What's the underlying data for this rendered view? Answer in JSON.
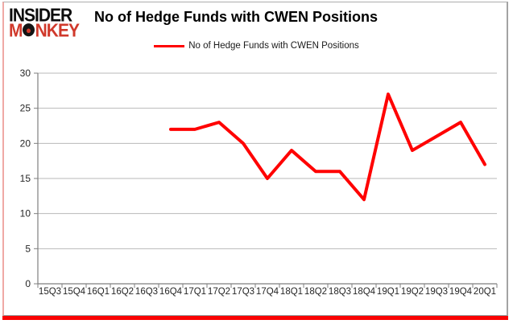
{
  "brand": {
    "top": "INSIDER",
    "bottom": "MONKEY"
  },
  "chart_data": {
    "type": "line",
    "title": "No of Hedge Funds with CWEN Positions",
    "legend": "No of Hedge Funds with CWEN Positions",
    "categories": [
      "15Q3",
      "15Q4",
      "16Q1",
      "16Q2",
      "16Q3",
      "16Q4",
      "17Q1",
      "17Q2",
      "17Q3",
      "17Q4",
      "18Q1",
      "18Q2",
      "18Q3",
      "18Q4",
      "19Q1",
      "19Q2",
      "19Q3",
      "19Q4",
      "20Q1"
    ],
    "series": [
      {
        "name": "No of Hedge Funds with CWEN Positions",
        "color": "#ff0000",
        "values": [
          null,
          null,
          null,
          null,
          null,
          22,
          22,
          23,
          20,
          15,
          19,
          16,
          16,
          12,
          27,
          19,
          21,
          23,
          17
        ]
      }
    ],
    "ylim": [
      0,
      30
    ],
    "yticks": [
      0,
      5,
      10,
      15,
      20,
      25,
      30
    ],
    "grid": true,
    "legend_position": "top-center"
  },
  "theme": {
    "line": "#ff0000",
    "grid": "#b9b9b9",
    "axis": "#7f7f7f",
    "tick_label": "#262626",
    "title_color": "#000000",
    "brand_red": "#d0392b",
    "bottom_shadow": "#fa0202"
  }
}
